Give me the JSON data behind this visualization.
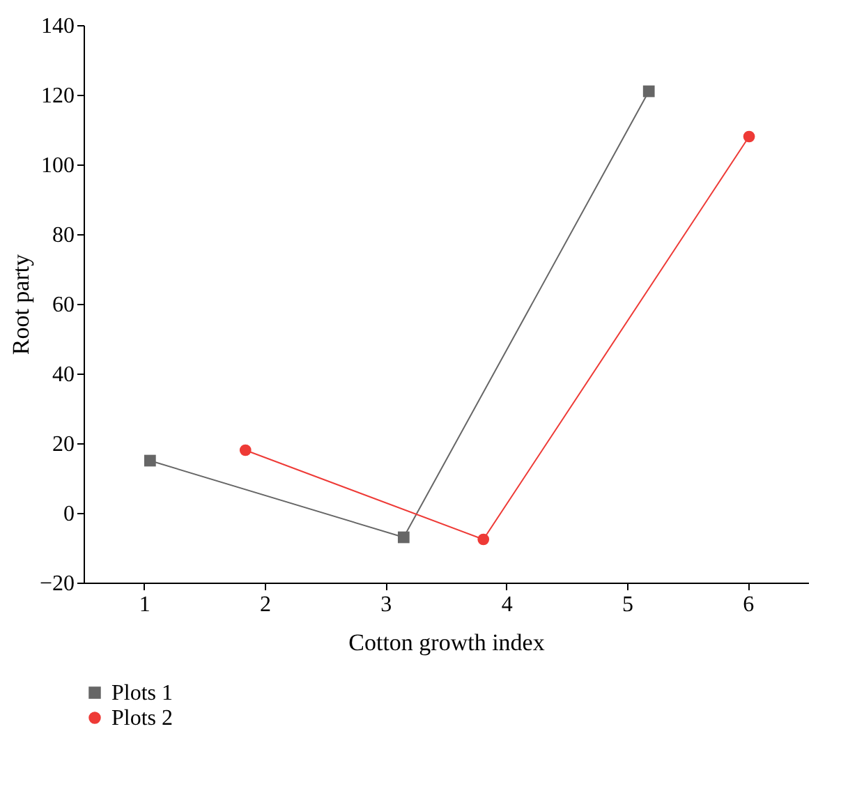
{
  "chart_data": {
    "type": "line",
    "xlabel": "Cotton growth index",
    "ylabel": "Root party",
    "xlim": [
      0.5,
      6.5
    ],
    "xticks": [
      1,
      2,
      3,
      4,
      5,
      6
    ],
    "ylim": [
      -20,
      140
    ],
    "yticks": [
      {
        "value": -20,
        "label": "−20"
      },
      0,
      20,
      40,
      60,
      80,
      100,
      120,
      140
    ],
    "grid": false,
    "legend": "bottom left",
    "series": [
      {
        "name": "Plots 1",
        "color": "#666666",
        "marker": "square",
        "x": [
          1.05,
          3.15,
          5.18
        ],
        "values": [
          15,
          -7,
          121
        ]
      },
      {
        "name": "Plots 2",
        "color": "#ee3a36",
        "marker": "circle",
        "x": [
          1.84,
          3.81,
          6.01
        ],
        "values": [
          18,
          -7.6,
          108
        ]
      }
    ]
  }
}
